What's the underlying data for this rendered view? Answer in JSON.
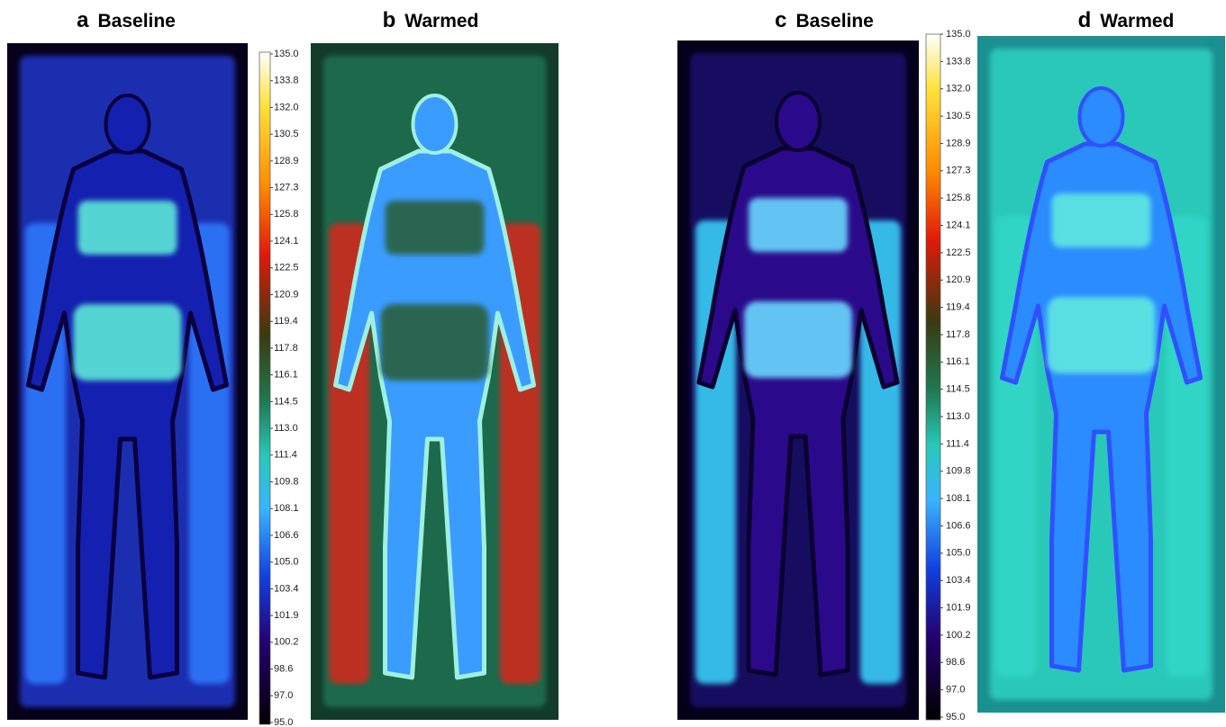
{
  "panels": [
    {
      "letter": "a",
      "title": "Baseline"
    },
    {
      "letter": "b",
      "title": "Warmed"
    },
    {
      "letter": "c",
      "title": "Baseline"
    },
    {
      "letter": "d",
      "title": "Warmed"
    }
  ],
  "colorbars": [
    {
      "labels": [
        "135.0",
        "133.8",
        "132.0",
        "130.5",
        "128.9",
        "127.3",
        "125.8",
        "124.1",
        "122.5",
        "120.9",
        "119.4",
        "117.8",
        "116.1",
        "114.5",
        "113.0",
        "111.4",
        "109.8",
        "108.1",
        "106.6",
        "105.0",
        "103.4",
        "101.9",
        "100.2",
        "98.6",
        "97.0",
        "95.0"
      ]
    },
    {
      "labels": [
        "135.0",
        "133.8",
        "132.0",
        "130.5",
        "128.9",
        "127.3",
        "125.8",
        "124.1",
        "122.5",
        "120.9",
        "119.4",
        "117.8",
        "116.1",
        "114.5",
        "113.0",
        "111.4",
        "109.8",
        "108.1",
        "106.6",
        "105.0",
        "103.4",
        "101.9",
        "100.2",
        "98.6",
        "97.0",
        "95.0"
      ]
    }
  ]
}
